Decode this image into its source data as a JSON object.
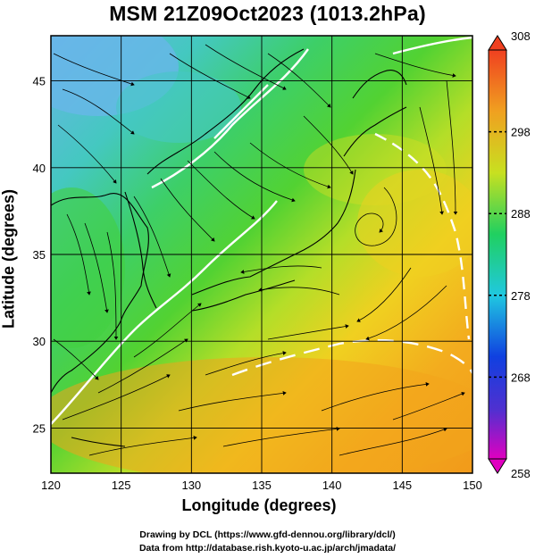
{
  "title": "MSM 21Z09Oct2023 (1013.2hPa)",
  "x_axis_label": "Longitude (degrees)",
  "y_axis_label": "Latitude  (degrees)",
  "x_ticks": [
    {
      "label": "120",
      "value": 120
    },
    {
      "label": "125",
      "value": 125
    },
    {
      "label": "130",
      "value": 130
    },
    {
      "label": "135",
      "value": 135
    },
    {
      "label": "140",
      "value": 140
    },
    {
      "label": "145",
      "value": 145
    },
    {
      "label": "150",
      "value": 150
    }
  ],
  "y_ticks": [
    {
      "label": "25",
      "value": 25
    },
    {
      "label": "30",
      "value": 30
    },
    {
      "label": "35",
      "value": 35
    },
    {
      "label": "40",
      "value": 40
    },
    {
      "label": "45",
      "value": 45
    }
  ],
  "colorbar_ticks": [
    {
      "label": "308",
      "value": 308
    },
    {
      "label": "298",
      "value": 298
    },
    {
      "label": "288",
      "value": 288
    },
    {
      "label": "278",
      "value": 278
    },
    {
      "label": "268",
      "value": 268
    },
    {
      "label": "258",
      "value": 258
    }
  ],
  "credits": {
    "line1": "Drawing by DCL (https://www.gfd-dennou.org/library/dcl/)",
    "line2": "Data from http://database.rish.kyoto-u.ac.jp/arch/jmadata/"
  },
  "map_extent": {
    "lon_min": 120,
    "lon_max": 150,
    "lat_min": 22.4,
    "lat_max": 47.6
  },
  "colorbar_range": {
    "min": 258,
    "max": 308
  },
  "colors": {
    "cold": "#5fb7e6",
    "cool": "#3fd0b8",
    "mid": "#3ccc3c",
    "warm_mid": "#a8dc28",
    "warm": "#f0c820",
    "hot": "#f2a41c",
    "contour": "#ffffff",
    "stream": "#000000"
  }
}
